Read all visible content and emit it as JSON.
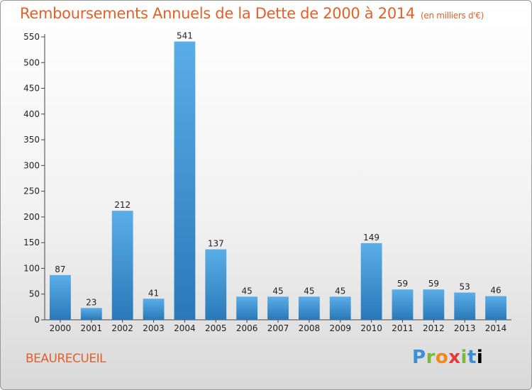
{
  "header": {
    "title": "Remboursements Annuels de la Dette de 2000 à 2014",
    "unit": "(en milliers d'€)"
  },
  "footer": {
    "commune": "BEAURECUEIL",
    "logo": [
      "P",
      "r",
      "o",
      "x",
      "i",
      "t",
      "i"
    ]
  },
  "colors": {
    "bar_top": "#5aaee8",
    "bar_bottom": "#2a78b8",
    "title": "#e0612a"
  },
  "chart_data": {
    "type": "bar",
    "title": "Remboursements Annuels de la Dette de 2000 à 2014",
    "subtitle": "(en milliers d'€)",
    "xlabel": "",
    "ylabel": "",
    "categories": [
      "2000",
      "2001",
      "2002",
      "2003",
      "2004",
      "2005",
      "2006",
      "2007",
      "2008",
      "2009",
      "2010",
      "2011",
      "2012",
      "2013",
      "2014"
    ],
    "values": [
      87,
      23,
      212,
      41,
      541,
      137,
      45,
      45,
      45,
      45,
      149,
      59,
      59,
      53,
      46
    ],
    "ylim": [
      0,
      550
    ],
    "yticks": [
      0,
      50,
      100,
      150,
      200,
      250,
      300,
      350,
      400,
      450,
      500,
      550
    ],
    "grid": false,
    "legend": "none"
  }
}
